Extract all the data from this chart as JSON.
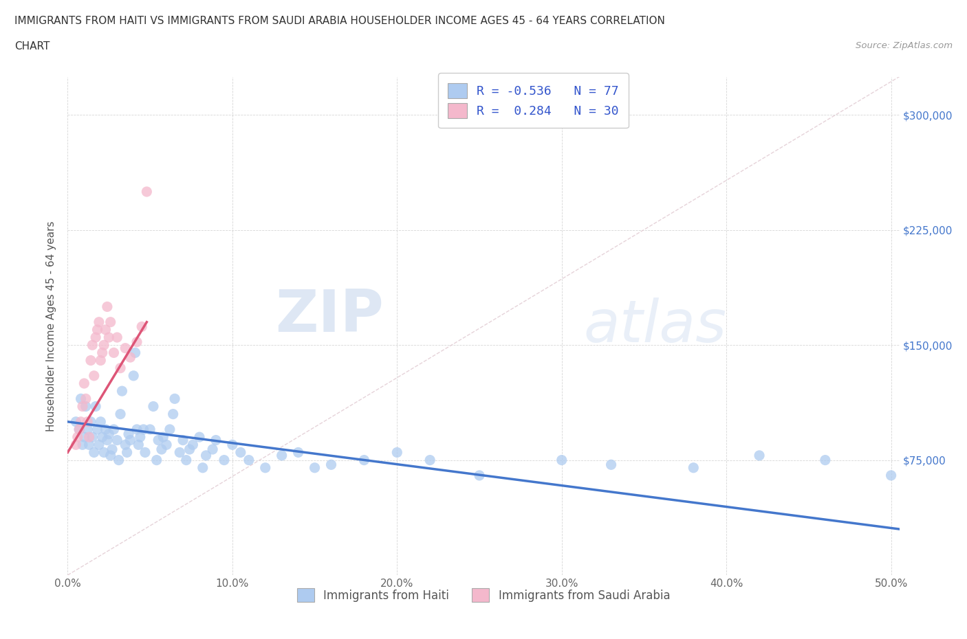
{
  "title_line1": "IMMIGRANTS FROM HAITI VS IMMIGRANTS FROM SAUDI ARABIA HOUSEHOLDER INCOME AGES 45 - 64 YEARS CORRELATION",
  "title_line2": "CHART",
  "source": "Source: ZipAtlas.com",
  "ylabel": "Householder Income Ages 45 - 64 years",
  "xlim": [
    0,
    0.505
  ],
  "ylim": [
    0,
    325000
  ],
  "yticks": [
    0,
    75000,
    150000,
    225000,
    300000
  ],
  "ytick_labels_right": [
    "",
    "$75,000",
    "$150,000",
    "$225,000",
    "$300,000"
  ],
  "xticks": [
    0.0,
    0.1,
    0.2,
    0.3,
    0.4,
    0.5
  ],
  "xtick_labels": [
    "0.0%",
    "10.0%",
    "20.0%",
    "30.0%",
    "40.0%",
    "50.0%"
  ],
  "haiti_color": "#aecbf0",
  "saudi_color": "#f4b8cc",
  "haiti_line_color": "#4477cc",
  "saudi_line_color": "#dd5577",
  "diagonal_color": "#e0c8d0",
  "haiti_R": -0.536,
  "haiti_N": 77,
  "saudi_R": 0.284,
  "saudi_N": 30,
  "legend_haiti_label": "Immigrants from Haiti",
  "legend_saudi_label": "Immigrants from Saudi Arabia",
  "watermark_zip": "ZIP",
  "watermark_atlas": "atlas",
  "haiti_scatter_x": [
    0.005,
    0.007,
    0.008,
    0.009,
    0.01,
    0.011,
    0.012,
    0.013,
    0.014,
    0.015,
    0.016,
    0.017,
    0.018,
    0.019,
    0.02,
    0.021,
    0.022,
    0.023,
    0.024,
    0.025,
    0.026,
    0.027,
    0.028,
    0.03,
    0.031,
    0.032,
    0.033,
    0.035,
    0.036,
    0.037,
    0.038,
    0.04,
    0.041,
    0.042,
    0.043,
    0.044,
    0.046,
    0.047,
    0.05,
    0.052,
    0.054,
    0.055,
    0.057,
    0.058,
    0.06,
    0.062,
    0.064,
    0.065,
    0.068,
    0.07,
    0.072,
    0.074,
    0.076,
    0.08,
    0.082,
    0.084,
    0.088,
    0.09,
    0.095,
    0.1,
    0.105,
    0.11,
    0.12,
    0.13,
    0.14,
    0.15,
    0.16,
    0.18,
    0.2,
    0.22,
    0.25,
    0.3,
    0.33,
    0.38,
    0.42,
    0.46,
    0.5
  ],
  "haiti_scatter_y": [
    100000,
    95000,
    115000,
    85000,
    90000,
    110000,
    95000,
    85000,
    100000,
    90000,
    80000,
    110000,
    95000,
    85000,
    100000,
    90000,
    80000,
    95000,
    88000,
    92000,
    78000,
    82000,
    95000,
    88000,
    75000,
    105000,
    120000,
    85000,
    80000,
    92000,
    88000,
    130000,
    145000,
    95000,
    85000,
    90000,
    95000,
    80000,
    95000,
    110000,
    75000,
    88000,
    82000,
    90000,
    85000,
    95000,
    105000,
    115000,
    80000,
    88000,
    75000,
    82000,
    85000,
    90000,
    70000,
    78000,
    82000,
    88000,
    75000,
    85000,
    80000,
    75000,
    70000,
    78000,
    80000,
    70000,
    72000,
    75000,
    80000,
    75000,
    65000,
    75000,
    72000,
    70000,
    78000,
    75000,
    65000
  ],
  "saudi_scatter_x": [
    0.005,
    0.006,
    0.007,
    0.008,
    0.009,
    0.01,
    0.011,
    0.012,
    0.013,
    0.014,
    0.015,
    0.016,
    0.017,
    0.018,
    0.019,
    0.02,
    0.021,
    0.022,
    0.023,
    0.024,
    0.025,
    0.026,
    0.028,
    0.03,
    0.032,
    0.035,
    0.038,
    0.042,
    0.045,
    0.048
  ],
  "saudi_scatter_y": [
    85000,
    90000,
    95000,
    100000,
    110000,
    125000,
    115000,
    100000,
    90000,
    140000,
    150000,
    130000,
    155000,
    160000,
    165000,
    140000,
    145000,
    150000,
    160000,
    175000,
    155000,
    165000,
    145000,
    155000,
    135000,
    148000,
    142000,
    152000,
    162000,
    250000
  ]
}
